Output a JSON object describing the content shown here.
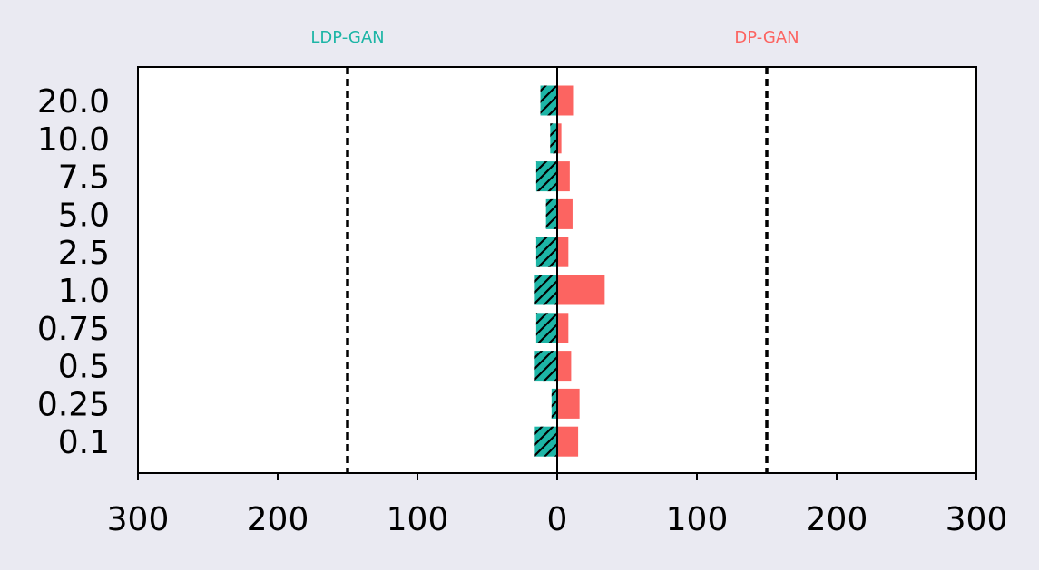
{
  "chart_data": {
    "type": "bar",
    "orientation": "horizontal",
    "categories": [
      "20.0",
      "10.0",
      "7.5",
      "5.0",
      "2.5",
      "1.0",
      "0.75",
      "0.5",
      "0.25",
      "0.1"
    ],
    "series": [
      {
        "name": "LDP-GAN",
        "side": "left",
        "color": "#1db5a6",
        "hatch": "diagonal",
        "values": [
          12,
          5,
          15,
          8,
          15,
          16,
          15,
          16,
          4,
          16
        ]
      },
      {
        "name": "DP-GAN",
        "side": "right",
        "color": "#fc6461",
        "hatch": "none",
        "values": [
          12,
          3,
          9,
          11,
          8,
          34,
          8,
          10,
          16,
          15
        ]
      }
    ],
    "xlim": [
      -300,
      300
    ],
    "xticks": [
      -300,
      -200,
      -100,
      0,
      100,
      200,
      300
    ],
    "xtick_labels": [
      "300",
      "200",
      "100",
      "0",
      "100",
      "200",
      "300"
    ],
    "reference_lines": [
      -150,
      150
    ],
    "reference_line_style": "dashed",
    "grid": false,
    "title": "",
    "xlabel": "",
    "ylabel": ""
  },
  "colors": {
    "background": "#eaeaf2",
    "plot_background": "#ffffff",
    "axis": "#000000"
  }
}
